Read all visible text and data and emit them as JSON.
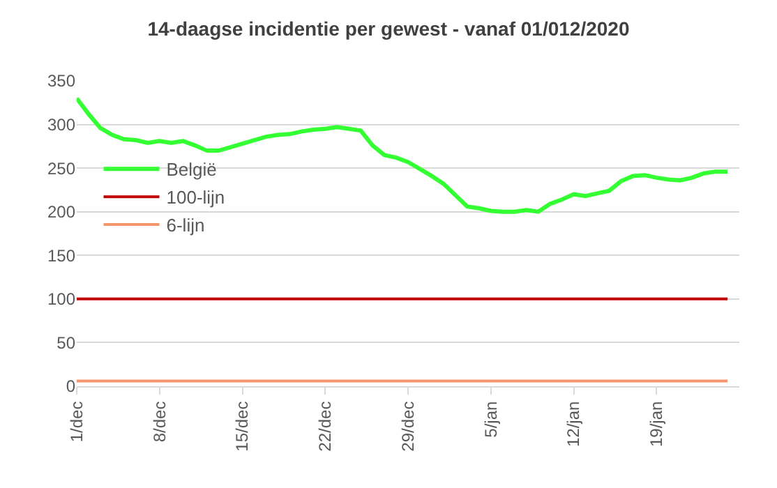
{
  "chart_data": {
    "type": "line",
    "title": "14-daagse incidentie per gewest - vanaf 01/012/2020",
    "x": [
      "2020-12-01",
      "2020-12-02",
      "2020-12-03",
      "2020-12-04",
      "2020-12-05",
      "2020-12-06",
      "2020-12-07",
      "2020-12-08",
      "2020-12-09",
      "2020-12-10",
      "2020-12-11",
      "2020-12-12",
      "2020-12-13",
      "2020-12-14",
      "2020-12-15",
      "2020-12-16",
      "2020-12-17",
      "2020-12-18",
      "2020-12-19",
      "2020-12-20",
      "2020-12-21",
      "2020-12-22",
      "2020-12-23",
      "2020-12-24",
      "2020-12-25",
      "2020-12-26",
      "2020-12-27",
      "2020-12-28",
      "2020-12-29",
      "2020-12-30",
      "2020-12-31",
      "2021-01-01",
      "2021-01-02",
      "2021-01-03",
      "2021-01-04",
      "2021-01-05",
      "2021-01-06",
      "2021-01-07",
      "2021-01-08",
      "2021-01-09",
      "2021-01-10",
      "2021-01-11",
      "2021-01-12",
      "2021-01-13",
      "2021-01-14",
      "2021-01-15",
      "2021-01-16",
      "2021-01-17",
      "2021-01-18",
      "2021-01-19",
      "2021-01-20",
      "2021-01-21",
      "2021-01-22",
      "2021-01-23",
      "2021-01-24",
      "2021-01-25"
    ],
    "series": [
      {
        "name": "België",
        "color": "#33ff33",
        "values": [
          330,
          312,
          296,
          288,
          283,
          282,
          279,
          281,
          279,
          281,
          276,
          270,
          270,
          274,
          278,
          282,
          286,
          288,
          289,
          292,
          294,
          295,
          297,
          295,
          293,
          276,
          265,
          262,
          257,
          249,
          241,
          232,
          219,
          206,
          204,
          201,
          200,
          200,
          202,
          200,
          209,
          214,
          220,
          218,
          221,
          224,
          235,
          241,
          242,
          239,
          237,
          236,
          239,
          244,
          246,
          246
        ]
      },
      {
        "name": "100-lijn",
        "color": "#c00000",
        "x": [
          "2020-12-01",
          "2021-01-25"
        ],
        "values": [
          100,
          100
        ]
      },
      {
        "name": "6-lijn",
        "color": "#f4956b",
        "x": [
          "2020-12-01",
          "2021-01-25"
        ],
        "values": [
          6,
          6
        ]
      }
    ],
    "xlim": [
      "2020-12-01",
      "2021-01-26"
    ],
    "xticks": [
      {
        "value": "2020-12-01",
        "label": "1/dec"
      },
      {
        "value": "2020-12-08",
        "label": "8/dec"
      },
      {
        "value": "2020-12-15",
        "label": "15/dec"
      },
      {
        "value": "2020-12-22",
        "label": "22/dec"
      },
      {
        "value": "2020-12-29",
        "label": "29/dec"
      },
      {
        "value": "2021-01-05",
        "label": "5/jan"
      },
      {
        "value": "2021-01-12",
        "label": "12/jan"
      },
      {
        "value": "2021-01-19",
        "label": "19/jan"
      }
    ],
    "ylim": [
      0,
      350
    ],
    "yticks": [
      0,
      50,
      100,
      150,
      200,
      250,
      300,
      350
    ],
    "grid": "y",
    "legend": "left",
    "marker": "none",
    "line_style": "solid"
  }
}
